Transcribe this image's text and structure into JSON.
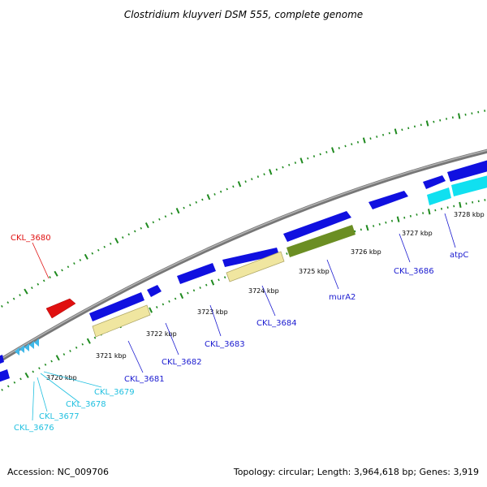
{
  "title": "Clostridium kluyveri DSM 555, complete genome",
  "footer": {
    "accession": "Accession: NC_009706",
    "summary": "Topology: circular; Length: 3,964,618 bp; Genes: 3,919"
  },
  "colors": {
    "backbone": "#8c8c8c",
    "tick_marks": "#1f8a1f",
    "gene_blue": "#1010e0",
    "gene_red": "#e01010",
    "gene_cyan": "#10e0f0",
    "gene_small_cyan": "#40b8e8",
    "gene_khaki": "#f0e6a0",
    "gene_olive": "#6b8e23",
    "label_blue": "#1a1ad0",
    "label_red": "#e01010",
    "label_cyan": "#20c0e0"
  },
  "scale": {
    "unit": "kbp",
    "ticks": [
      "3720 kbp",
      "3721 kbp",
      "3722 kbp",
      "3723 kbp",
      "3724 kbp",
      "3725 kbp",
      "3726 kbp",
      "3727 kbp",
      "3728 kbp"
    ]
  },
  "genes": [
    {
      "name": "CKL_3676",
      "color": "cyan"
    },
    {
      "name": "CKL_3677",
      "color": "cyan"
    },
    {
      "name": "CKL_3678",
      "color": "cyan"
    },
    {
      "name": "CKL_3679",
      "color": "cyan"
    },
    {
      "name": "CKL_3680",
      "color": "red"
    },
    {
      "name": "CKL_3681",
      "color": "blue"
    },
    {
      "name": "CKL_3682",
      "color": "blue"
    },
    {
      "name": "CKL_3683",
      "color": "blue"
    },
    {
      "name": "CKL_3684",
      "color": "blue"
    },
    {
      "name": "murA2",
      "color": "blue"
    },
    {
      "name": "CKL_3686",
      "color": "blue"
    },
    {
      "name": "atpC",
      "color": "blue"
    }
  ]
}
